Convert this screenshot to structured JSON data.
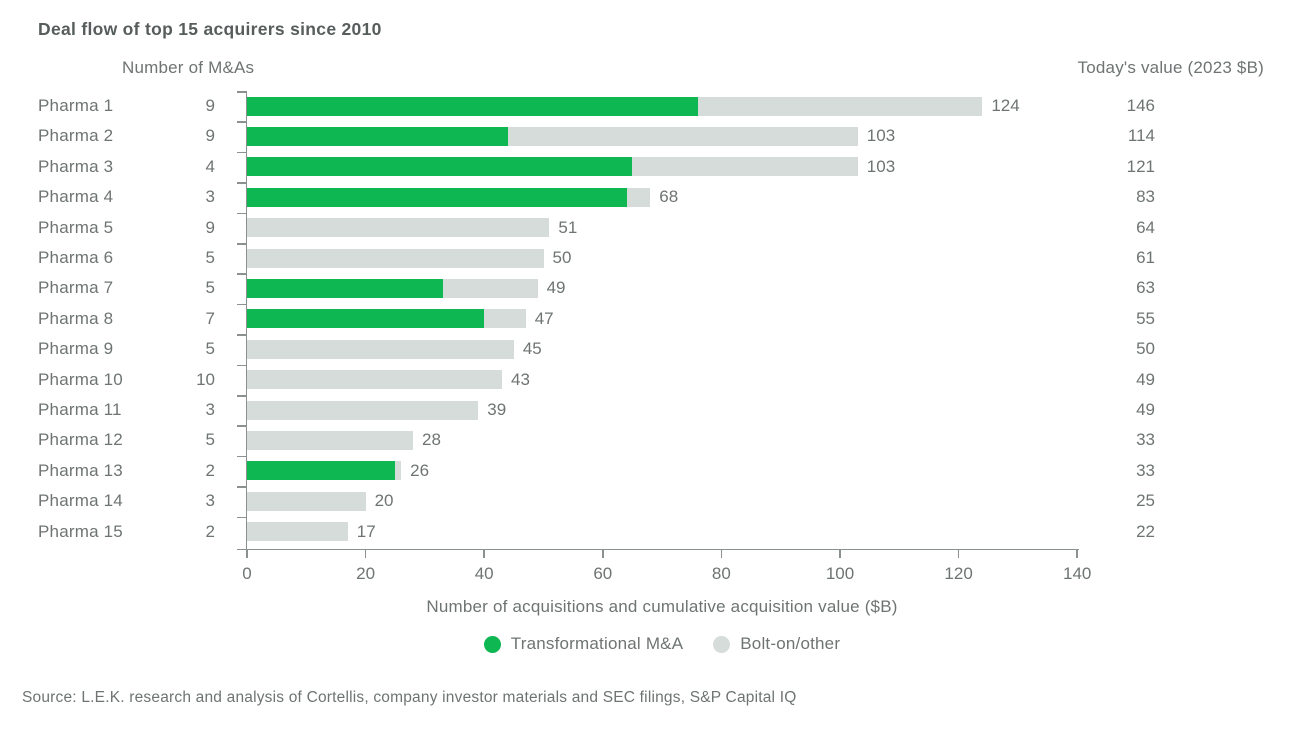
{
  "title": "Deal flow of top 15 acquirers since 2010",
  "left_header": "Number of M&As",
  "right_header": "Today's value (2023 $B)",
  "source": "Source: L.E.K. research and analysis of Cortellis, company investor materials and SEC filings, S&P Capital IQ",
  "colors": {
    "transformational_green": "#0eb752",
    "bolt_on_gray": "#d6dcd9",
    "axis_gray": "#8b9190",
    "text_gray": "#6e7473",
    "title_gray": "#575d5c"
  },
  "legend": [
    {
      "label": "Transformational M&A",
      "color": "#0eb752"
    },
    {
      "label": "Bolt-on/other",
      "color": "#d6dcd9"
    }
  ],
  "chart_data": {
    "type": "bar",
    "orientation": "horizontal",
    "stacked": true,
    "title": "Deal flow of top 15 acquirers since 2010",
    "categories": [
      "Pharma 1",
      "Pharma 2",
      "Pharma 3",
      "Pharma 4",
      "Pharma 5",
      "Pharma 6",
      "Pharma 7",
      "Pharma 8",
      "Pharma 9",
      "Pharma 10",
      "Pharma 11",
      "Pharma 12",
      "Pharma 13",
      "Pharma 14",
      "Pharma 15"
    ],
    "number_of_mas": [
      9,
      9,
      4,
      3,
      9,
      5,
      5,
      7,
      5,
      10,
      3,
      5,
      2,
      3,
      2
    ],
    "series": [
      {
        "name": "Transformational M&A",
        "color": "#0eb752",
        "values": [
          76,
          44,
          65,
          64,
          0,
          0,
          33,
          40,
          0,
          0,
          0,
          0,
          25,
          0,
          0
        ]
      },
      {
        "name": "Bolt-on/other",
        "color": "#d6dcd9",
        "values": [
          48,
          59,
          38,
          4,
          51,
          50,
          16,
          7,
          45,
          43,
          39,
          28,
          1,
          20,
          17
        ]
      }
    ],
    "bar_total_labels": [
      124,
      103,
      103,
      68,
      51,
      50,
      49,
      47,
      45,
      43,
      39,
      28,
      26,
      20,
      17
    ],
    "todays_value_2023_b": [
      146,
      114,
      121,
      83,
      64,
      61,
      63,
      55,
      50,
      49,
      49,
      33,
      33,
      25,
      22
    ],
    "xlabel": "Number of acquisitions and cumulative acquisition value ($B)",
    "xlim": [
      0,
      140
    ],
    "xticks": [
      0,
      20,
      40,
      60,
      80,
      100,
      120,
      140
    ],
    "grid": false,
    "legend_position": "bottom"
  }
}
